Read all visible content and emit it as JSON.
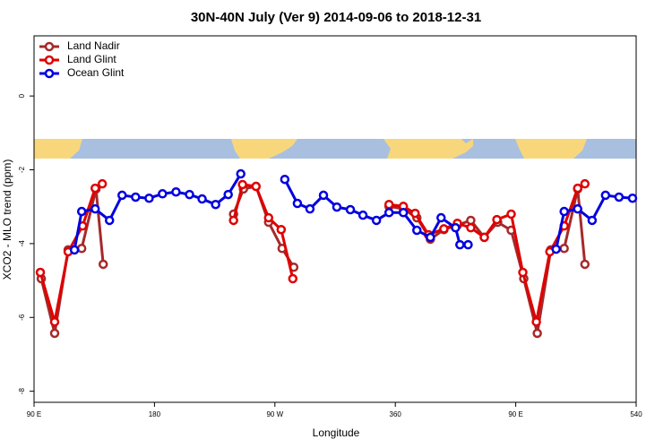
{
  "chart_data": {
    "type": "line",
    "title": "30N-40N July (Ver 9)   2014-09-06 to 2018-12-31",
    "x_label": "Longitude",
    "y_label": "XCO2 - MLO trend (ppm)",
    "xlim": [
      90,
      540
    ],
    "ylim": [
      -8.3,
      1.63
    ],
    "xticks": [
      {
        "value": 90,
        "label": "90 E"
      },
      180,
      {
        "value": 270,
        "label": "90 W"
      },
      360,
      {
        "value": 450,
        "label": "90 E"
      },
      540
    ],
    "yticks": [
      0,
      -2,
      -4,
      -6,
      -8
    ],
    "legend": "upper left",
    "series": [
      {
        "name": "Land Nadir",
        "color": "#a52a2a",
        "x": [
          95.4,
          105.4,
          115.5,
          125.6,
          136.3,
          141.7,
          null,
          239.1,
          246.5,
          255.9,
          265.3,
          275.4,
          284.1,
          null,
          355.3,
          366.0,
          376.1,
          386.2,
          396.3,
          406.4,
          416.4,
          426.5,
          436.5,
          446.6,
          456.0,
          466.1,
          476.2,
          486.2,
          496.3,
          501.7
        ],
        "values": [
          -4.95,
          -6.43,
          -4.17,
          -4.13,
          -2.52,
          -4.56,
          null,
          -3.2,
          -2.52,
          -2.45,
          -3.42,
          -4.13,
          -4.64,
          null,
          -2.99,
          -3.06,
          -3.3,
          -3.88,
          -3.62,
          -3.5,
          -3.37,
          -3.83,
          -3.42,
          -3.64,
          -4.95,
          -6.43,
          -4.17,
          -4.13,
          -2.52,
          -4.56
        ]
      },
      {
        "name": "Land Glint",
        "color": "#e00000",
        "x": [
          94.7,
          105.4,
          115.5,
          126.3,
          135.7,
          141.0,
          null,
          239.1,
          245.8,
          255.9,
          265.3,
          274.7,
          283.4,
          null,
          355.3,
          366.0,
          374.8,
          384.8,
          396.3,
          406.4,
          416.4,
          426.5,
          435.9,
          446.6,
          455.3,
          465.4,
          475.5,
          486.2,
          496.3,
          501.7
        ],
        "values": [
          -4.78,
          -6.12,
          -4.22,
          -3.52,
          -2.5,
          -2.38,
          null,
          -3.37,
          -2.4,
          -2.45,
          -3.3,
          -3.62,
          -4.95,
          null,
          -2.94,
          -2.99,
          -3.18,
          -3.76,
          -3.6,
          -3.45,
          -3.57,
          -3.83,
          -3.35,
          -3.2,
          -4.78,
          -6.12,
          -4.22,
          -3.52,
          -2.5,
          -2.38
        ]
      },
      {
        "name": "Ocean Glint",
        "color": "#0000e0",
        "x": [
          120.2,
          125.6,
          135.7,
          146.4,
          155.8,
          165.9,
          176.0,
          186.0,
          196.1,
          206.2,
          215.6,
          225.7,
          235.1,
          244.5,
          null,
          277.4,
          286.8,
          296.2,
          306.3,
          316.3,
          326.4,
          335.8,
          345.9,
          355.3,
          366.0,
          376.1,
          386.2,
          394.2,
          405.0,
          408.3,
          414.4,
          null,
          480.2,
          486.2,
          496.3,
          507.1,
          517.1,
          527.2,
          537.3
        ],
        "values": [
          -4.17,
          -3.13,
          -3.06,
          -3.37,
          -2.69,
          -2.74,
          -2.77,
          -2.65,
          -2.6,
          -2.67,
          -2.79,
          -2.94,
          -2.67,
          -2.11,
          null,
          -2.26,
          -2.91,
          -3.06,
          -2.69,
          -3.01,
          -3.08,
          -3.23,
          -3.37,
          -3.16,
          -3.16,
          -3.64,
          -3.83,
          -3.3,
          -3.57,
          -4.03,
          -4.03,
          null,
          -4.15,
          -3.13,
          -3.06,
          -3.37,
          -2.69,
          -2.74,
          -2.77
        ]
      }
    ]
  }
}
